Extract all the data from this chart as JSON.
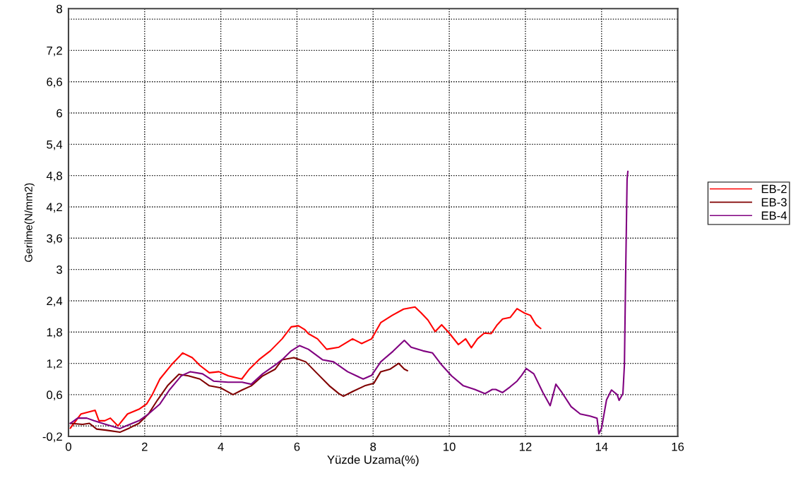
{
  "chart_data": {
    "type": "line",
    "xlabel": "Yüzde Uzama(%)",
    "ylabel": "Gerilme(N/mm2)",
    "xlim": [
      0,
      16
    ],
    "xticks": [
      0,
      2,
      4,
      6,
      8,
      10,
      12,
      14,
      16
    ],
    "ylim": [
      -0.2,
      8
    ],
    "yticks": [
      {
        "value": -0.2,
        "label": "-0,2"
      },
      {
        "value": 0,
        "label": null
      },
      {
        "value": 0.6,
        "label": "0,6"
      },
      {
        "value": 1.2,
        "label": "1,2"
      },
      {
        "value": 1.8,
        "label": "1,8"
      },
      {
        "value": 2.4,
        "label": "2,4"
      },
      {
        "value": 3,
        "label": "3"
      },
      {
        "value": 3.6,
        "label": "3,6"
      },
      {
        "value": 4.2,
        "label": "4,2"
      },
      {
        "value": 4.8,
        "label": "4,8"
      },
      {
        "value": 5.4,
        "label": "5,4"
      },
      {
        "value": 6,
        "label": "6"
      },
      {
        "value": 6.6,
        "label": "6,6"
      },
      {
        "value": 7.2,
        "label": "7,2"
      },
      {
        "value": 7.8,
        "label": null
      },
      {
        "value": 8,
        "label": "8"
      }
    ],
    "grid": true,
    "legend": "right",
    "marker": "none",
    "line_style": "solid",
    "series": [
      {
        "name": "EB-2",
        "color": "#ff0000",
        "x": [
          0.05,
          0.33,
          0.7,
          0.8,
          0.95,
          1.1,
          1.3,
          1.55,
          1.85,
          2.05,
          2.2,
          2.4,
          2.7,
          3.0,
          3.25,
          3.45,
          3.7,
          3.95,
          4.2,
          4.37,
          4.55,
          4.75,
          5.0,
          5.3,
          5.61,
          5.85,
          6.04,
          6.2,
          6.3,
          6.54,
          6.78,
          7.1,
          7.46,
          7.7,
          7.96,
          8.2,
          8.5,
          8.8,
          9.1,
          9.26,
          9.44,
          9.63,
          9.8,
          10.0,
          10.24,
          10.43,
          10.58,
          10.74,
          10.92,
          11.1,
          11.26,
          11.4,
          11.6,
          11.78,
          11.96,
          12.13,
          12.28,
          12.4
        ],
        "values": [
          -0.04,
          0.23,
          0.3,
          0.1,
          0.1,
          0.15,
          0.0,
          0.23,
          0.32,
          0.42,
          0.6,
          0.9,
          1.17,
          1.4,
          1.31,
          1.16,
          1.02,
          1.04,
          0.96,
          0.93,
          0.9,
          1.09,
          1.27,
          1.44,
          1.67,
          1.9,
          1.92,
          1.85,
          1.77,
          1.67,
          1.47,
          1.51,
          1.67,
          1.58,
          1.67,
          1.98,
          2.12,
          2.24,
          2.28,
          2.17,
          2.03,
          1.81,
          1.94,
          1.78,
          1.56,
          1.67,
          1.5,
          1.67,
          1.78,
          1.77,
          1.94,
          2.05,
          2.08,
          2.25,
          2.17,
          2.12,
          1.94,
          1.87
        ]
      },
      {
        "name": "EB-3",
        "color": "#800000",
        "x": [
          0.05,
          0.37,
          0.55,
          0.74,
          0.98,
          1.35,
          1.6,
          1.85,
          2.1,
          2.34,
          2.6,
          2.9,
          3.15,
          3.45,
          3.7,
          4.0,
          4.32,
          4.56,
          4.8,
          5.1,
          5.43,
          5.61,
          5.92,
          6.23,
          6.54,
          6.85,
          7.1,
          7.22,
          7.46,
          7.78,
          8.02,
          8.2,
          8.45,
          8.67,
          8.82,
          8.9
        ],
        "values": [
          0.05,
          0.03,
          0.05,
          -0.06,
          -0.08,
          -0.12,
          -0.04,
          0.05,
          0.23,
          0.5,
          0.77,
          0.99,
          0.96,
          0.9,
          0.77,
          0.73,
          0.6,
          0.69,
          0.77,
          0.96,
          1.09,
          1.27,
          1.31,
          1.23,
          1.0,
          0.77,
          0.62,
          0.57,
          0.66,
          0.77,
          0.82,
          1.04,
          1.09,
          1.2,
          1.09,
          1.06
        ]
      },
      {
        "name": "EB-4",
        "color": "#800080",
        "x": [
          0.05,
          0.24,
          0.48,
          0.67,
          0.98,
          1.35,
          1.54,
          1.85,
          2.1,
          2.4,
          2.65,
          2.96,
          3.2,
          3.52,
          3.81,
          4.19,
          4.56,
          4.8,
          5.1,
          5.43,
          5.61,
          5.85,
          6.07,
          6.3,
          6.67,
          6.96,
          7.33,
          7.74,
          7.96,
          8.2,
          8.52,
          8.82,
          9.0,
          9.31,
          9.56,
          9.8,
          10.06,
          10.37,
          10.67,
          10.94,
          11.13,
          11.22,
          11.4,
          11.6,
          11.78,
          11.9,
          12.02,
          12.22,
          12.46,
          12.65,
          12.8,
          12.96,
          13.2,
          13.44,
          13.7,
          13.88,
          13.93,
          14.0,
          14.13,
          14.26,
          14.41,
          14.46,
          14.56,
          14.6,
          14.63,
          14.67,
          14.69
        ],
        "values": [
          0.05,
          0.15,
          0.15,
          0.1,
          0.03,
          -0.05,
          0.01,
          0.1,
          0.23,
          0.42,
          0.69,
          0.96,
          1.04,
          1.0,
          0.86,
          0.84,
          0.84,
          0.8,
          1.0,
          1.17,
          1.27,
          1.44,
          1.54,
          1.47,
          1.27,
          1.23,
          1.04,
          0.9,
          0.97,
          1.23,
          1.43,
          1.64,
          1.51,
          1.44,
          1.4,
          1.17,
          0.96,
          0.77,
          0.7,
          0.62,
          0.7,
          0.7,
          0.64,
          0.75,
          0.86,
          0.97,
          1.1,
          1.0,
          0.64,
          0.39,
          0.8,
          0.64,
          0.37,
          0.23,
          0.19,
          0.15,
          -0.15,
          -0.04,
          0.5,
          0.69,
          0.6,
          0.49,
          0.62,
          1.17,
          2.79,
          4.73,
          4.88
        ]
      }
    ]
  }
}
